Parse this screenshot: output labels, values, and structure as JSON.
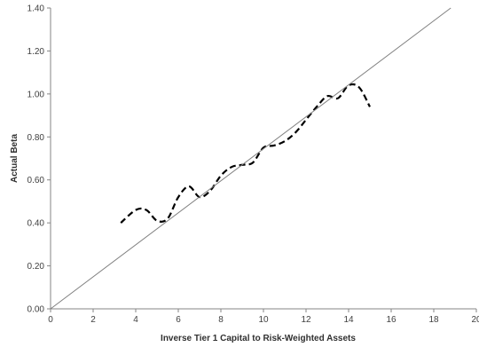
{
  "chart_data": {
    "type": "line",
    "title": "",
    "xlabel": "Inverse Tier 1 Capital to Risk-Weighted Assets",
    "ylabel": "Actual Beta",
    "xlim": [
      0,
      20
    ],
    "ylim": [
      0,
      1.4
    ],
    "x_ticks": [
      "0",
      "2",
      "4",
      "6",
      "8",
      "10",
      "12",
      "14",
      "16",
      "18",
      "20"
    ],
    "y_ticks": [
      "0.00",
      "0.20",
      "0.40",
      "0.60",
      "0.80",
      "1.00",
      "1.20",
      "1.40"
    ],
    "grid": false,
    "legend": "none",
    "series": [
      {
        "style": "dashed",
        "color": "#000000",
        "x": [
          3.3,
          4.0,
          4.5,
          5.0,
          5.5,
          6.0,
          6.5,
          7.0,
          7.5,
          8.0,
          8.5,
          9.0,
          9.5,
          10.0,
          10.5,
          11.0,
          11.5,
          12.0,
          12.5,
          13.0,
          13.5,
          14.0,
          14.5,
          15.0
        ],
        "y": [
          0.4,
          0.46,
          0.46,
          0.41,
          0.42,
          0.52,
          0.57,
          0.52,
          0.55,
          0.62,
          0.66,
          0.67,
          0.68,
          0.75,
          0.76,
          0.78,
          0.82,
          0.88,
          0.94,
          0.99,
          0.98,
          1.04,
          1.03,
          0.94
        ]
      },
      {
        "style": "solid",
        "color": "#808080",
        "x": [
          0,
          18.8
        ],
        "y": [
          0,
          1.4
        ]
      }
    ]
  }
}
